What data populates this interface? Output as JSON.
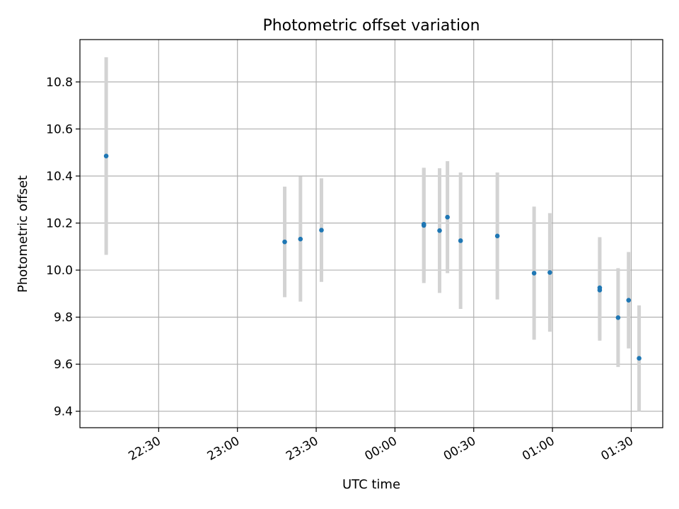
{
  "chart_data": {
    "type": "scatter",
    "title": "Photometric offset variation",
    "xlabel": "UTC time",
    "ylabel": "Photometric offset",
    "grid": true,
    "legend": "none",
    "xlim": [
      "22:00",
      "01:42"
    ],
    "ylim": [
      9.33,
      10.98
    ],
    "xticks": [
      "22:30",
      "23:00",
      "23:30",
      "00:00",
      "00:30",
      "01:00",
      "01:30"
    ],
    "yticks": [
      9.4,
      9.6,
      9.8,
      10.0,
      10.2,
      10.4,
      10.6,
      10.8
    ],
    "points": [
      {
        "x": "22:10",
        "y": 10.485,
        "yerr": 0.42
      },
      {
        "x": "23:18",
        "y": 10.12,
        "yerr": 0.235
      },
      {
        "x": "23:24",
        "y": 10.132,
        "yerr": 0.266
      },
      {
        "x": "23:32",
        "y": 10.17,
        "yerr": 0.22
      },
      {
        "x": "00:11",
        "y": 10.19,
        "yerr": 0.245
      },
      {
        "x": "00:11",
        "y": 10.195,
        "yerr": 0.24
      },
      {
        "x": "00:17",
        "y": 10.168,
        "yerr": 0.265
      },
      {
        "x": "00:20",
        "y": 10.225,
        "yerr": 0.238
      },
      {
        "x": "00:25",
        "y": 10.125,
        "yerr": 0.29
      },
      {
        "x": "00:39",
        "y": 10.145,
        "yerr": 0.27
      },
      {
        "x": "00:53",
        "y": 9.987,
        "yerr": 0.283
      },
      {
        "x": "00:59",
        "y": 9.99,
        "yerr": 0.252
      },
      {
        "x": "01:18",
        "y": 9.915,
        "yerr": 0.215
      },
      {
        "x": "01:18",
        "y": 9.925,
        "yerr": 0.215
      },
      {
        "x": "01:25",
        "y": 9.798,
        "yerr": 0.21
      },
      {
        "x": "01:29",
        "y": 9.872,
        "yerr": 0.205
      },
      {
        "x": "01:33",
        "y": 9.625,
        "yerr": 0.225
      }
    ],
    "colors": {
      "marker": "#1f77b4",
      "errorbar": "#d3d3d3",
      "grid": "#b0b0b0",
      "axes": "#000000"
    }
  }
}
